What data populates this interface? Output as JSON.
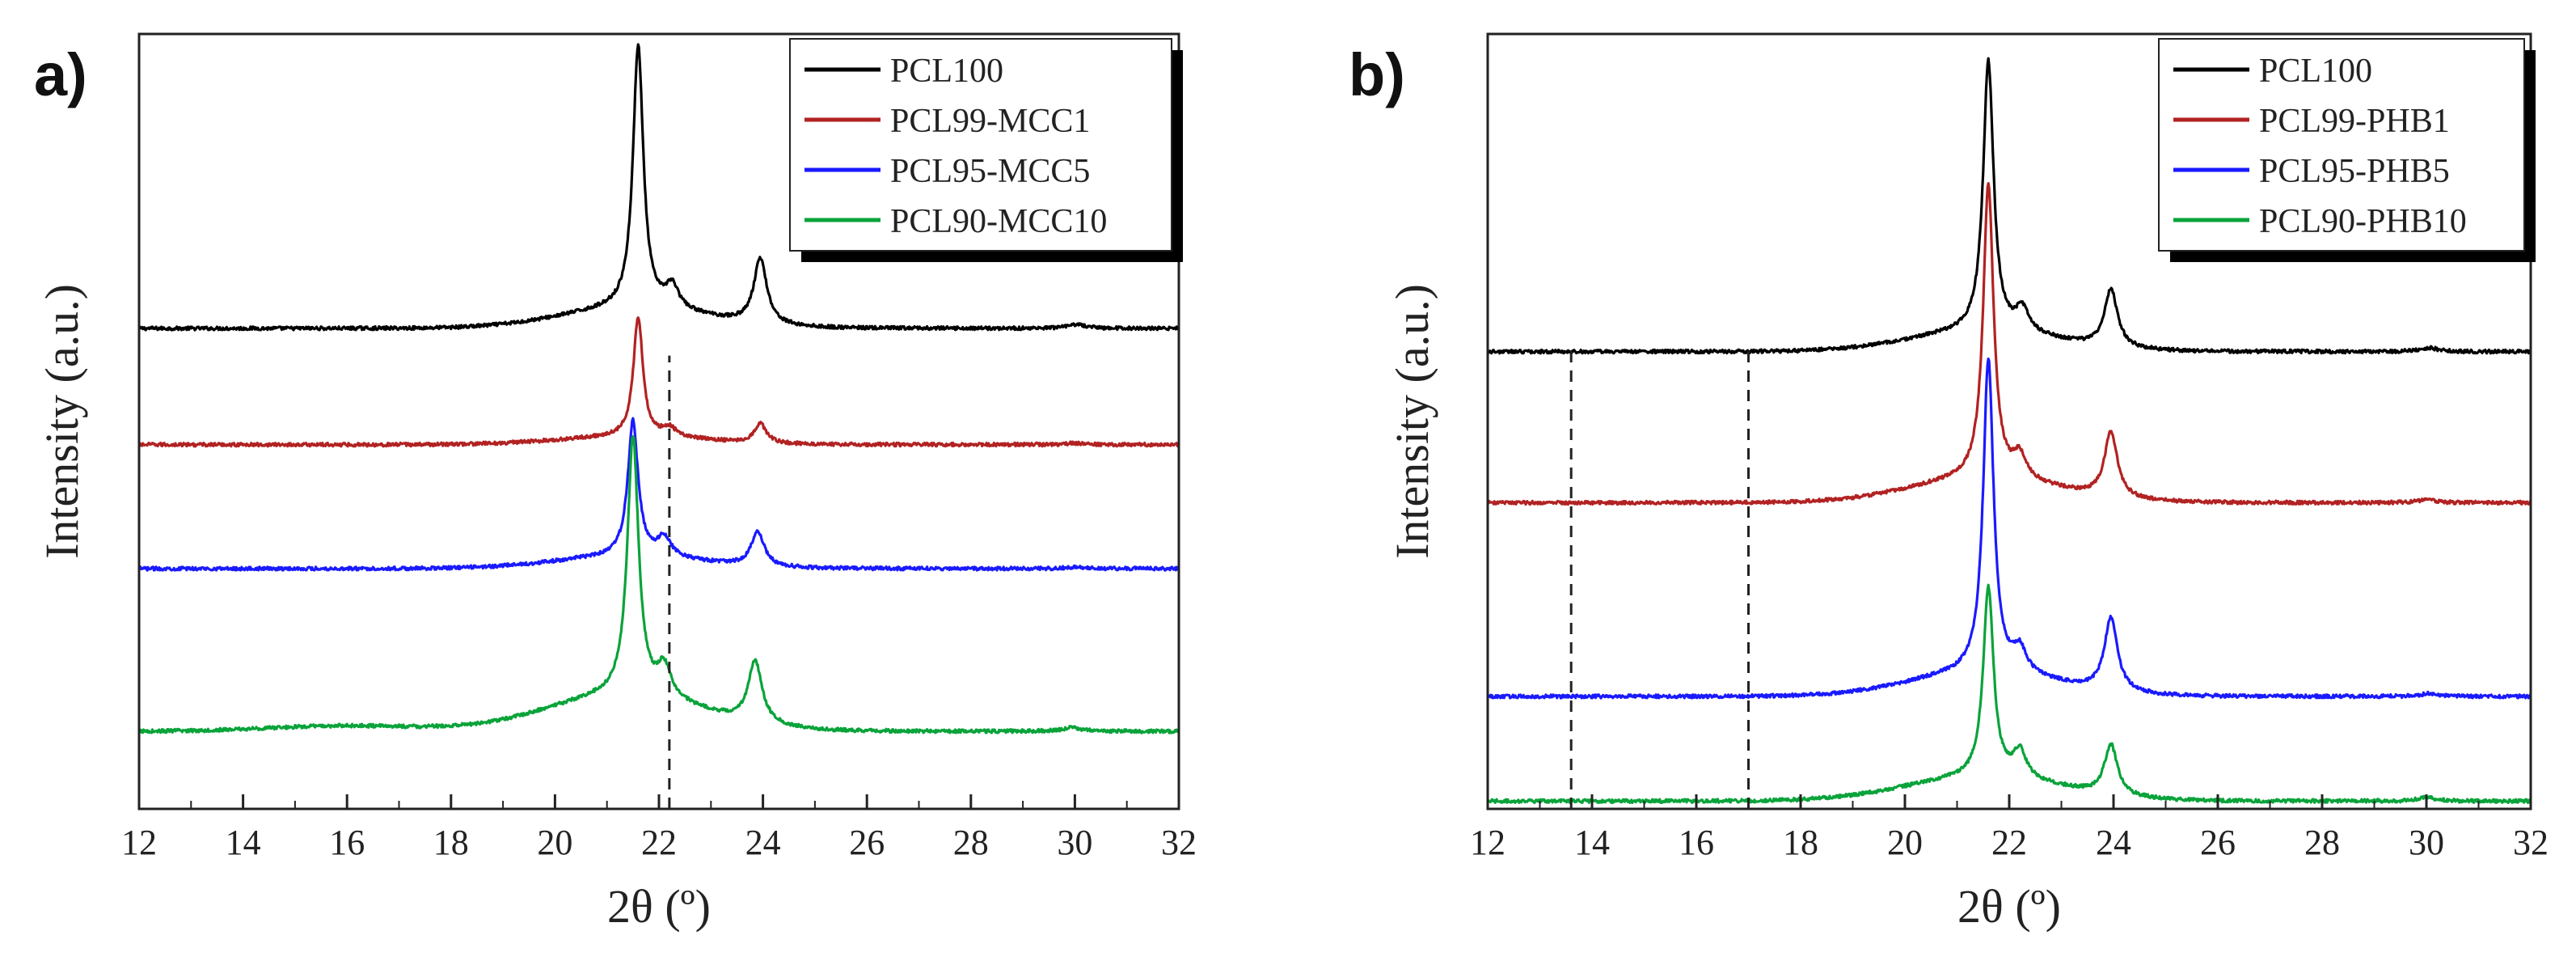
{
  "chart_data": [
    {
      "type": "line",
      "panel_label": "a)",
      "xlabel": "2θ (º)",
      "ylabel": "Intensity (a.u.)",
      "xlim": [
        12,
        32
      ],
      "ylim": [
        0,
        10
      ],
      "x_ticks": [
        12,
        14,
        16,
        18,
        20,
        22,
        24,
        26,
        28,
        30,
        32
      ],
      "x_tick_labels": [
        "12",
        "14",
        "16",
        "18",
        "20",
        "22",
        "24",
        "26",
        "28",
        "30",
        "32"
      ],
      "y_ticks_labeled": false,
      "legend_position": "top-right",
      "reference_lines_x": [
        22.2
      ],
      "series": [
        {
          "name": "PCL100",
          "color": "#000000",
          "baseline": 6.2,
          "slope": 0.0,
          "peaks": [
            [
              21.6,
              3.4,
              0.12
            ],
            [
              22.25,
              0.3,
              0.15
            ],
            [
              23.95,
              0.85,
              0.15
            ],
            [
              30.05,
              0.05,
              0.2
            ]
          ],
          "amorphous_halo": [
            21.5,
            0.25,
            1.4
          ]
        },
        {
          "name": "PCL99-MCC1",
          "color": "#b22222",
          "baseline": 4.7,
          "slope": 0.0,
          "peaks": [
            [
              21.6,
              1.55,
              0.11
            ],
            [
              22.2,
              0.12,
              0.15
            ],
            [
              23.95,
              0.25,
              0.14
            ],
            [
              30.0,
              0.02,
              0.2
            ]
          ],
          "amorphous_halo": [
            21.5,
            0.1,
            1.4
          ]
        },
        {
          "name": "PCL95-MCC5",
          "color": "#1a1aff",
          "baseline": 3.1,
          "slope": 0.0,
          "peaks": [
            [
              21.5,
              1.75,
              0.12
            ],
            [
              22.1,
              0.25,
              0.16
            ],
            [
              23.9,
              0.45,
              0.15
            ],
            [
              30.0,
              0.02,
              0.2
            ]
          ],
          "amorphous_halo": [
            21.4,
            0.15,
            1.4
          ]
        },
        {
          "name": "PCL90-MCC10",
          "color": "#0aa33a",
          "baseline": 1.0,
          "slope": 0.0,
          "peaks": [
            [
              21.5,
              3.35,
              0.13
            ],
            [
              22.1,
              0.4,
              0.16
            ],
            [
              23.85,
              0.8,
              0.16
            ],
            [
              29.95,
              0.05,
              0.2
            ]
          ],
          "amorphous_halo": [
            21.3,
            0.45,
            1.5
          ],
          "bump": [
            16.0,
            0.07,
            1.5
          ]
        }
      ]
    },
    {
      "type": "line",
      "panel_label": "b)",
      "xlabel": "2θ (º)",
      "ylabel": "Intensity (a.u.)",
      "xlim": [
        12,
        32
      ],
      "ylim": [
        0,
        10
      ],
      "x_ticks": [
        12,
        14,
        16,
        18,
        20,
        22,
        24,
        26,
        28,
        30,
        32
      ],
      "x_tick_labels": [
        "12",
        "14",
        "16",
        "18",
        "20",
        "22",
        "24",
        "26",
        "28",
        "30",
        "32"
      ],
      "y_ticks_labeled": false,
      "legend_position": "top-right",
      "reference_lines_x": [
        13.6,
        17.0
      ],
      "series": [
        {
          "name": "PCL100",
          "color": "#000000",
          "baseline": 5.9,
          "slope": 0.0,
          "peaks": [
            [
              21.6,
              3.5,
              0.12
            ],
            [
              22.25,
              0.3,
              0.15
            ],
            [
              23.95,
              0.75,
              0.15
            ],
            [
              30.05,
              0.05,
              0.2
            ]
          ],
          "amorphous_halo": [
            21.5,
            0.25,
            1.4
          ]
        },
        {
          "name": "PCL99-PHB1",
          "color": "#b22222",
          "baseline": 3.95,
          "slope": 0.0,
          "peaks": [
            [
              21.6,
              3.8,
              0.12
            ],
            [
              22.2,
              0.3,
              0.15
            ],
            [
              23.95,
              0.85,
              0.15
            ],
            [
              30.0,
              0.04,
              0.2
            ]
          ],
          "amorphous_halo": [
            21.5,
            0.3,
            1.4
          ]
        },
        {
          "name": "PCL95-PHB5",
          "color": "#1a1aff",
          "baseline": 1.45,
          "slope": 0.0,
          "peaks": [
            [
              21.6,
              4.05,
              0.12
            ],
            [
              22.2,
              0.3,
              0.15
            ],
            [
              23.95,
              0.95,
              0.15
            ],
            [
              30.05,
              0.04,
              0.2
            ]
          ],
          "amorphous_halo": [
            21.5,
            0.3,
            1.4
          ]
        },
        {
          "name": "PCL90-PHB10",
          "color": "#0aa33a",
          "baseline": 0.1,
          "slope": 0.0,
          "peaks": [
            [
              21.6,
              2.45,
              0.12
            ],
            [
              22.2,
              0.35,
              0.15
            ],
            [
              23.95,
              0.65,
              0.15
            ],
            [
              30.0,
              0.05,
              0.2
            ]
          ],
          "amorphous_halo": [
            21.5,
            0.3,
            1.5
          ]
        }
      ]
    }
  ]
}
